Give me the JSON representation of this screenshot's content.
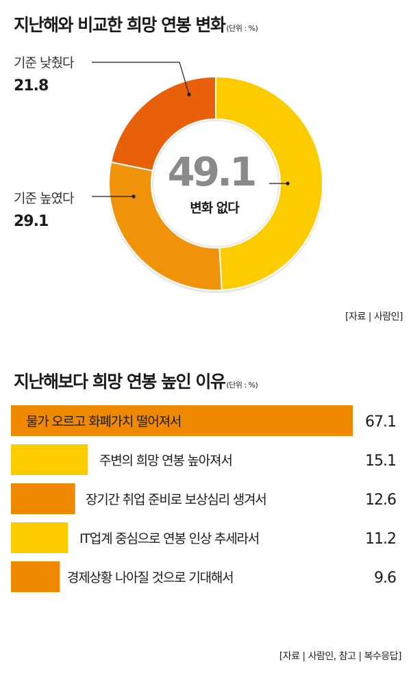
{
  "chart1": {
    "title": "지난해와 비교한 희망 연봉 변화",
    "unit": "(단위 : %)",
    "source": "[자료 | 사람인]",
    "center_value": "49.1",
    "center_label": "변화 없다"
  },
  "chart2": {
    "title": "지난해보다 희망 연봉 높인 이유",
    "unit": "(단위 : %)",
    "source": "[자료 | 사람인, 참고 | 복수응답]"
  },
  "colors": {
    "yellow": "#fccc00",
    "orange": "#f0930a",
    "dark_orange": "#e8600a",
    "bar_orange": "#ef8a00"
  },
  "chart_data": [
    {
      "type": "pie",
      "categories": [
        "변화 없다",
        "기준 높였다",
        "기준 낮췄다"
      ],
      "values": [
        49.1,
        29.1,
        21.8
      ],
      "value_labels": [
        "49.1",
        "29.1",
        "21.8"
      ],
      "colors": [
        "#fccc00",
        "#f0930a",
        "#e8600a"
      ]
    },
    {
      "type": "bar",
      "orientation": "horizontal",
      "categories": [
        "물가 오르고 화폐가치 떨어져서",
        "주변의 희망 연봉 높아져서",
        "장기간 취업 준비로 보상심리 생겨서",
        "IT업계 중심으로 연봉 인상 추세라서",
        "경제상황 나아질 것으로 기대해서"
      ],
      "values": [
        67.1,
        15.1,
        12.6,
        11.2,
        9.6
      ],
      "value_labels": [
        "67.1",
        "15.1",
        "12.6",
        "11.2",
        "9.6"
      ],
      "colors": [
        "#ef8a00",
        "#fccc00",
        "#ef8a00",
        "#fccc00",
        "#ef8a00"
      ],
      "xlim": [
        0,
        67.1
      ]
    }
  ]
}
